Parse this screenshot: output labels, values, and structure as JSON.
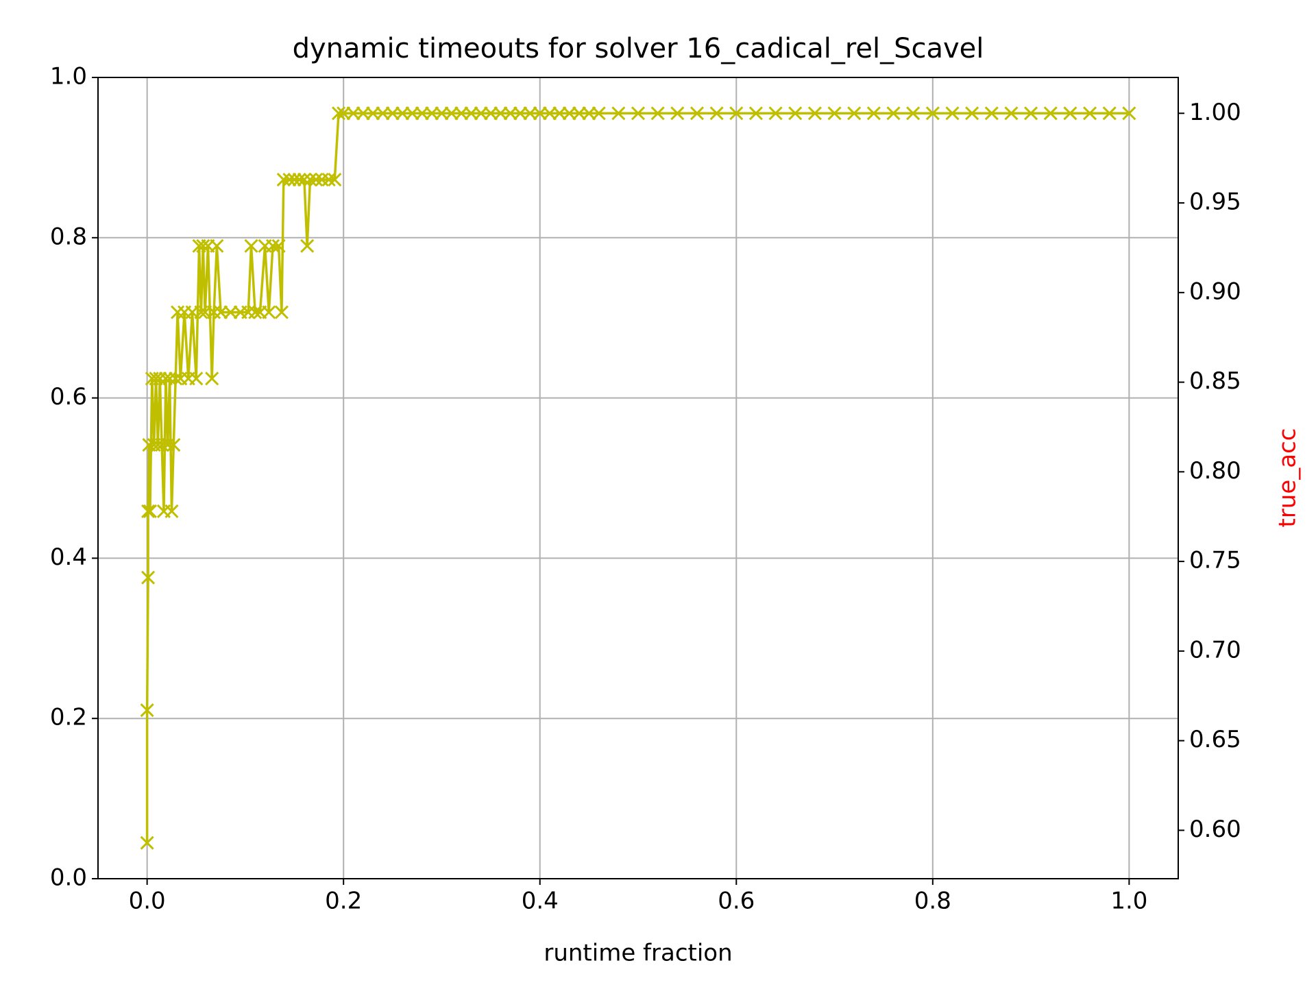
{
  "chart_data": {
    "type": "line",
    "title": "dynamic timeouts for solver 16_cadical_rel_Scavel",
    "xlabel": "runtime fraction",
    "y2label": "true_acc",
    "y2label_color": "#ff0000",
    "xlim": [
      -0.05,
      1.05
    ],
    "xticks": [
      {
        "value": 0,
        "label": "0.0"
      },
      0.2,
      0.4,
      0.6,
      0.8,
      {
        "value": 1,
        "label": "1.0"
      }
    ],
    "ylim": [
      0,
      1
    ],
    "yticks": [
      {
        "value": 0,
        "label": "0.0"
      },
      0.2,
      0.4,
      0.6,
      0.8,
      {
        "value": 1,
        "label": "1.0"
      }
    ],
    "y2lim": [
      0.573,
      1.02
    ],
    "y2ticks": [
      {
        "value": 0.6,
        "label": "0.60"
      },
      0.65,
      {
        "value": 0.7,
        "label": "0.70"
      },
      0.75,
      {
        "value": 0.8,
        "label": "0.80"
      },
      0.85,
      {
        "value": 0.9,
        "label": "0.90"
      },
      0.95,
      {
        "value": 1,
        "label": "1.00"
      }
    ],
    "grid": true,
    "marker": "x",
    "series": [
      {
        "name": "true_acc",
        "color": "#bfbf00",
        "axis": "y2",
        "x": [
          0.0,
          0.0,
          0.001,
          0.001,
          0.002,
          0.003,
          0.005,
          0.007,
          0.009,
          0.011,
          0.013,
          0.015,
          0.017,
          0.019,
          0.021,
          0.023,
          0.025,
          0.027,
          0.029,
          0.031,
          0.034,
          0.038,
          0.042,
          0.046,
          0.05,
          0.053,
          0.055,
          0.057,
          0.059,
          0.062,
          0.066,
          0.068,
          0.071,
          0.075,
          0.085,
          0.095,
          0.103,
          0.106,
          0.11,
          0.115,
          0.12,
          0.124,
          0.128,
          0.134,
          0.137,
          0.139,
          0.145,
          0.15,
          0.155,
          0.16,
          0.163,
          0.166,
          0.172,
          0.178,
          0.185,
          0.191,
          0.195,
          0.2,
          0.21,
          0.22,
          0.23,
          0.24,
          0.25,
          0.26,
          0.27,
          0.28,
          0.29,
          0.3,
          0.31,
          0.32,
          0.33,
          0.34,
          0.35,
          0.36,
          0.37,
          0.38,
          0.39,
          0.4,
          0.41,
          0.42,
          0.43,
          0.44,
          0.45,
          0.46,
          0.48,
          0.5,
          0.52,
          0.54,
          0.56,
          0.58,
          0.6,
          0.62,
          0.64,
          0.66,
          0.68,
          0.7,
          0.72,
          0.74,
          0.76,
          0.78,
          0.8,
          0.82,
          0.84,
          0.86,
          0.88,
          0.9,
          0.92,
          0.94,
          0.96,
          0.98,
          1.0
        ],
        "values": [
          0.593,
          0.667,
          0.741,
          0.778,
          0.815,
          0.778,
          0.852,
          0.815,
          0.852,
          0.815,
          0.852,
          0.815,
          0.778,
          0.852,
          0.815,
          0.852,
          0.778,
          0.815,
          0.852,
          0.889,
          0.852,
          0.889,
          0.852,
          0.889,
          0.852,
          0.926,
          0.889,
          0.926,
          0.889,
          0.926,
          0.852,
          0.889,
          0.926,
          0.889,
          0.889,
          0.889,
          0.889,
          0.926,
          0.889,
          0.889,
          0.926,
          0.889,
          0.926,
          0.926,
          0.889,
          0.963,
          0.963,
          0.963,
          0.963,
          0.963,
          0.926,
          0.963,
          0.963,
          0.963,
          0.963,
          0.963,
          1.0,
          1.0,
          1.0,
          1.0,
          1.0,
          1.0,
          1.0,
          1.0,
          1.0,
          1.0,
          1.0,
          1.0,
          1.0,
          1.0,
          1.0,
          1.0,
          1.0,
          1.0,
          1.0,
          1.0,
          1.0,
          1.0,
          1.0,
          1.0,
          1.0,
          1.0,
          1.0,
          1.0,
          1.0,
          1.0,
          1.0,
          1.0,
          1.0,
          1.0,
          1.0,
          1.0,
          1.0,
          1.0,
          1.0,
          1.0,
          1.0,
          1.0,
          1.0,
          1.0,
          1.0,
          1.0,
          1.0,
          1.0,
          1.0,
          1.0,
          1.0,
          1.0,
          1.0,
          1.0,
          1.0
        ]
      }
    ]
  }
}
